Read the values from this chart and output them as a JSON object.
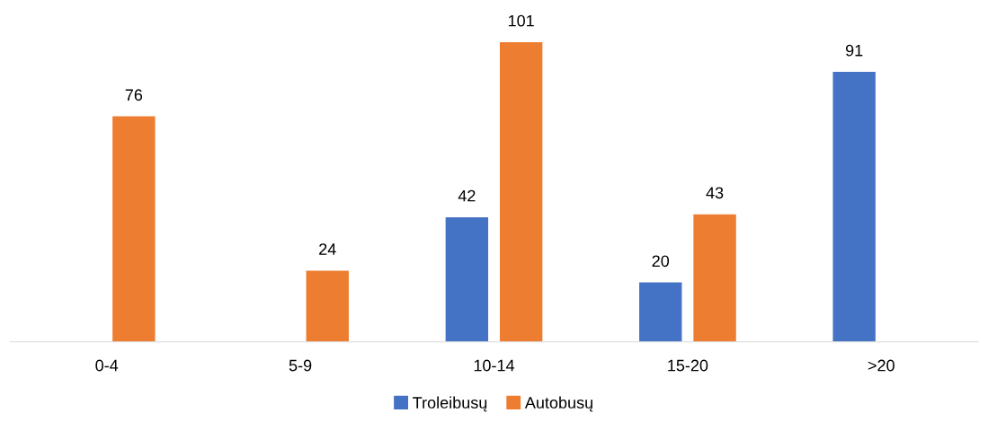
{
  "chart_data": {
    "type": "bar",
    "categories": [
      "0-4",
      "5-9",
      "10-14",
      "15-20",
      ">20"
    ],
    "series": [
      {
        "name": "Troleibusų",
        "color": "#4472c4",
        "values": [
          null,
          null,
          42,
          20,
          91
        ]
      },
      {
        "name": "Autobusų",
        "color": "#ed7d31",
        "values": [
          76,
          24,
          101,
          43,
          null
        ]
      }
    ],
    "data_labels": true,
    "legend": "bottom",
    "grid": false
  }
}
